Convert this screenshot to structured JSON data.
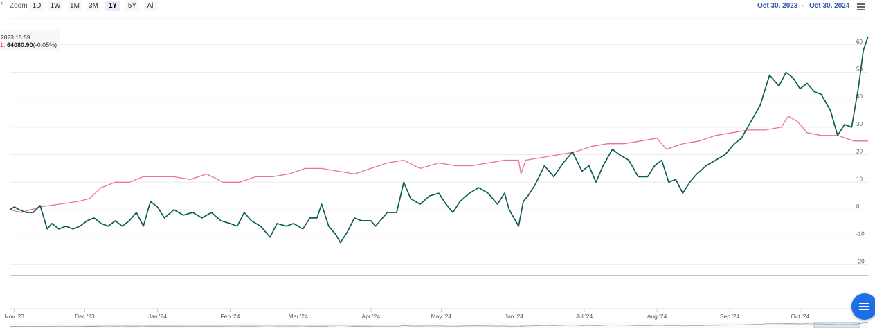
{
  "toolbar": {
    "back_glyph": "‹",
    "zoom_label": "Zoom",
    "buttons": [
      "1D",
      "1W",
      "1M",
      "3M",
      "1Y",
      "5Y",
      "All"
    ],
    "active": "1Y"
  },
  "range": {
    "from": "Oct 30, 2023",
    "separator": "→",
    "to": "Oct 30, 2024"
  },
  "tooltip": {
    "time": "2023:15:59",
    "key": "1:",
    "value": "64080.90",
    "change": "(-0.05%)"
  },
  "icons": {
    "menu": "hamburger-menu-icon",
    "fab": "list-menu-icon"
  },
  "colors": {
    "series_teal": "#0b5c56",
    "series_pink": "#ec6f9c",
    "range_text": "#3358a8",
    "fab": "#1e6ee6"
  },
  "chart_data": {
    "type": "line",
    "xlabel": "",
    "ylabel": "",
    "x_range": [
      "2023-10-30",
      "2024-10-30"
    ],
    "ylim": [
      -20,
      63
    ],
    "y_ticks": [
      -20,
      -10,
      0,
      10,
      20,
      30,
      40,
      50,
      60
    ],
    "y_tick_labels": [
      "-20",
      "-10",
      "0",
      "10",
      "20",
      "30",
      "40",
      "50",
      "60"
    ],
    "x_ticks": [
      "2023-11-01",
      "2023-12-01",
      "2024-01-01",
      "2024-02-01",
      "2024-03-01",
      "2024-04-01",
      "2024-05-01",
      "2024-06-01",
      "2024-07-01",
      "2024-08-01",
      "2024-09-01",
      "2024-10-01"
    ],
    "x_tick_labels": [
      "Nov '23",
      "Dec '23",
      "Jan '24",
      "Feb '24",
      "Mar '24",
      "Apr '24",
      "May '24",
      "Jun '24",
      "Jul '24",
      "Aug '24",
      "Sep '24",
      "Oct '24"
    ],
    "grid": true,
    "series": [
      {
        "color": "#0b5c56",
        "points": [
          [
            "2023-10-30",
            0
          ],
          [
            "2023-11-01",
            1
          ],
          [
            "2023-11-03",
            0
          ],
          [
            "2023-11-06",
            -1
          ],
          [
            "2023-11-09",
            -1
          ],
          [
            "2023-11-12",
            1.5
          ],
          [
            "2023-11-15",
            -7
          ],
          [
            "2023-11-17",
            -5
          ],
          [
            "2023-11-20",
            -7
          ],
          [
            "2023-11-23",
            -6
          ],
          [
            "2023-11-26",
            -7
          ],
          [
            "2023-11-29",
            -6
          ],
          [
            "2023-12-02",
            -4
          ],
          [
            "2023-12-05",
            -3
          ],
          [
            "2023-12-08",
            -5
          ],
          [
            "2023-12-11",
            -6
          ],
          [
            "2023-12-14",
            -4
          ],
          [
            "2023-12-17",
            -6
          ],
          [
            "2023-12-20",
            -4
          ],
          [
            "2023-12-23",
            -1
          ],
          [
            "2023-12-26",
            -6
          ],
          [
            "2023-12-29",
            3
          ],
          [
            "2024-01-01",
            1
          ],
          [
            "2024-01-04",
            -3
          ],
          [
            "2024-01-08",
            0
          ],
          [
            "2024-01-12",
            -2
          ],
          [
            "2024-01-16",
            -1
          ],
          [
            "2024-01-20",
            -3
          ],
          [
            "2024-01-24",
            -1
          ],
          [
            "2024-01-28",
            -4
          ],
          [
            "2024-02-01",
            -5
          ],
          [
            "2024-02-04",
            -6
          ],
          [
            "2024-02-07",
            -1
          ],
          [
            "2024-02-10",
            -4
          ],
          [
            "2024-02-14",
            -6
          ],
          [
            "2024-02-18",
            -10
          ],
          [
            "2024-02-21",
            -5
          ],
          [
            "2024-02-25",
            -6
          ],
          [
            "2024-02-28",
            -5
          ],
          [
            "2024-03-03",
            -7
          ],
          [
            "2024-03-06",
            -3
          ],
          [
            "2024-03-09",
            -3
          ],
          [
            "2024-03-11",
            2
          ],
          [
            "2024-03-14",
            -6
          ],
          [
            "2024-03-17",
            -9
          ],
          [
            "2024-03-19",
            -12
          ],
          [
            "2024-03-22",
            -8
          ],
          [
            "2024-03-25",
            -3
          ],
          [
            "2024-03-28",
            -4
          ],
          [
            "2024-04-01",
            -4
          ],
          [
            "2024-04-03",
            -6
          ],
          [
            "2024-04-08",
            -1
          ],
          [
            "2024-04-12",
            -1
          ],
          [
            "2024-04-15",
            10
          ],
          [
            "2024-04-18",
            4
          ],
          [
            "2024-04-22",
            2
          ],
          [
            "2024-04-26",
            5
          ],
          [
            "2024-04-30",
            6
          ],
          [
            "2024-05-03",
            2
          ],
          [
            "2024-05-06",
            -1
          ],
          [
            "2024-05-09",
            3
          ],
          [
            "2024-05-13",
            6
          ],
          [
            "2024-05-17",
            8
          ],
          [
            "2024-05-21",
            6
          ],
          [
            "2024-05-25",
            2
          ],
          [
            "2024-05-28",
            6
          ],
          [
            "2024-05-30",
            0
          ],
          [
            "2024-06-03",
            -6
          ],
          [
            "2024-06-05",
            3
          ],
          [
            "2024-06-07",
            5
          ],
          [
            "2024-06-10",
            9
          ],
          [
            "2024-06-14",
            16
          ],
          [
            "2024-06-18",
            12
          ],
          [
            "2024-06-22",
            17
          ],
          [
            "2024-06-26",
            21
          ],
          [
            "2024-06-30",
            14
          ],
          [
            "2024-07-03",
            16
          ],
          [
            "2024-07-06",
            10
          ],
          [
            "2024-07-09",
            16
          ],
          [
            "2024-07-13",
            22
          ],
          [
            "2024-07-16",
            20
          ],
          [
            "2024-07-20",
            18
          ],
          [
            "2024-07-24",
            12
          ],
          [
            "2024-07-28",
            12
          ],
          [
            "2024-07-31",
            16
          ],
          [
            "2024-08-03",
            18
          ],
          [
            "2024-08-06",
            10
          ],
          [
            "2024-08-09",
            11
          ],
          [
            "2024-08-12",
            6
          ],
          [
            "2024-08-15",
            10
          ],
          [
            "2024-08-18",
            13
          ],
          [
            "2024-08-22",
            16
          ],
          [
            "2024-08-26",
            18
          ],
          [
            "2024-08-30",
            20
          ],
          [
            "2024-09-03",
            24
          ],
          [
            "2024-09-06",
            26
          ],
          [
            "2024-09-10",
            32
          ],
          [
            "2024-09-14",
            38
          ],
          [
            "2024-09-18",
            49
          ],
          [
            "2024-09-22",
            45
          ],
          [
            "2024-09-25",
            50
          ],
          [
            "2024-09-28",
            48
          ],
          [
            "2024-10-01",
            44
          ],
          [
            "2024-10-04",
            46
          ],
          [
            "2024-10-07",
            43
          ],
          [
            "2024-10-10",
            42
          ],
          [
            "2024-10-14",
            36
          ],
          [
            "2024-10-17",
            27
          ],
          [
            "2024-10-20",
            31
          ],
          [
            "2024-10-23",
            30
          ],
          [
            "2024-10-26",
            45
          ],
          [
            "2024-10-28",
            58
          ],
          [
            "2024-10-30",
            63
          ]
        ]
      },
      {
        "color": "#ec6f9c",
        "points": [
          [
            "2023-10-30",
            0
          ],
          [
            "2023-11-04",
            -1
          ],
          [
            "2023-11-12",
            1
          ],
          [
            "2023-11-20",
            2
          ],
          [
            "2023-11-28",
            3
          ],
          [
            "2023-12-03",
            4
          ],
          [
            "2023-12-08",
            8
          ],
          [
            "2023-12-14",
            10
          ],
          [
            "2023-12-20",
            10
          ],
          [
            "2023-12-26",
            12
          ],
          [
            "2024-01-01",
            12
          ],
          [
            "2024-01-08",
            12
          ],
          [
            "2024-01-15",
            11
          ],
          [
            "2024-01-22",
            13
          ],
          [
            "2024-01-29",
            10
          ],
          [
            "2024-02-05",
            10
          ],
          [
            "2024-02-12",
            12
          ],
          [
            "2024-02-19",
            12
          ],
          [
            "2024-02-26",
            13
          ],
          [
            "2024-03-04",
            15
          ],
          [
            "2024-03-11",
            15
          ],
          [
            "2024-03-18",
            14
          ],
          [
            "2024-03-25",
            13
          ],
          [
            "2024-04-01",
            15
          ],
          [
            "2024-04-08",
            17
          ],
          [
            "2024-04-15",
            18
          ],
          [
            "2024-04-22",
            15
          ],
          [
            "2024-04-30",
            17
          ],
          [
            "2024-05-07",
            16
          ],
          [
            "2024-05-14",
            16
          ],
          [
            "2024-05-21",
            17
          ],
          [
            "2024-05-28",
            18
          ],
          [
            "2024-06-03",
            18
          ],
          [
            "2024-06-04",
            13
          ],
          [
            "2024-06-06",
            18
          ],
          [
            "2024-06-13",
            19
          ],
          [
            "2024-06-20",
            20
          ],
          [
            "2024-06-27",
            21
          ],
          [
            "2024-07-04",
            23
          ],
          [
            "2024-07-11",
            24
          ],
          [
            "2024-07-18",
            24
          ],
          [
            "2024-07-25",
            25
          ],
          [
            "2024-08-01",
            26
          ],
          [
            "2024-08-05",
            22
          ],
          [
            "2024-08-12",
            24
          ],
          [
            "2024-08-19",
            25
          ],
          [
            "2024-08-26",
            27
          ],
          [
            "2024-09-02",
            28
          ],
          [
            "2024-09-09",
            29
          ],
          [
            "2024-09-16",
            29
          ],
          [
            "2024-09-23",
            30
          ],
          [
            "2024-09-26",
            34
          ],
          [
            "2024-09-30",
            32
          ],
          [
            "2024-10-04",
            28
          ],
          [
            "2024-10-10",
            27
          ],
          [
            "2024-10-17",
            27
          ],
          [
            "2024-10-24",
            25
          ],
          [
            "2024-10-30",
            25
          ]
        ]
      }
    ]
  }
}
